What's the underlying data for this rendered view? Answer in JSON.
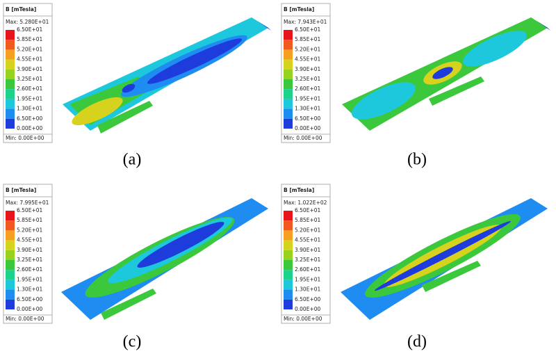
{
  "colormap": [
    "#e8141b",
    "#f05a1e",
    "#f5a01e",
    "#d7d21e",
    "#96d21e",
    "#3cc83c",
    "#1ed28c",
    "#1ec8dc",
    "#1e8cf0",
    "#1e3cdc"
  ],
  "panels": [
    {
      "legend": {
        "title": "B [mTesla]",
        "max": "Max: 5.280E+01",
        "labels": [
          "6.50E+01",
          "5.85E+01",
          "5.20E+01",
          "4.55E+01",
          "3.90E+01",
          "3.25E+01",
          "2.60E+01",
          "1.95E+01",
          "1.30E+01",
          "6.50E+00",
          "0.00E+00"
        ],
        "min": "Min: 0.00E+00"
      },
      "caption": "(a)"
    },
    {
      "legend": {
        "title": "B [mTesla]",
        "max": "Max: 7.943E+01",
        "labels": [
          "6.50E+01",
          "5.85E+01",
          "5.20E+01",
          "4.55E+01",
          "3.90E+01",
          "3.25E+01",
          "2.60E+01",
          "1.95E+01",
          "1.30E+01",
          "6.50E+00",
          "0.00E+00"
        ],
        "min": "Min: 0.00E+00"
      },
      "caption": "(b)"
    },
    {
      "legend": {
        "title": "B [mTesla]",
        "max": "Max: 7.995E+01",
        "labels": [
          "6.50E+01",
          "5.85E+01",
          "5.20E+01",
          "4.55E+01",
          "3.90E+01",
          "3.25E+01",
          "2.60E+01",
          "1.95E+01",
          "1.30E+01",
          "6.50E+00",
          "0.00E+00"
        ],
        "min": "Min: 0.00E+00"
      },
      "caption": "(c)"
    },
    {
      "legend": {
        "title": "B [mTesla]",
        "max": "Max: 1.022E+02",
        "labels": [
          "6.50E+01",
          "5.85E+01",
          "5.20E+01",
          "4.55E+01",
          "3.90E+01",
          "3.25E+01",
          "2.60E+01",
          "1.95E+01",
          "1.30E+01",
          "6.50E+00",
          "0.00E+00"
        ],
        "min": "Min: 0.00E+00"
      },
      "caption": "(d)"
    }
  ]
}
